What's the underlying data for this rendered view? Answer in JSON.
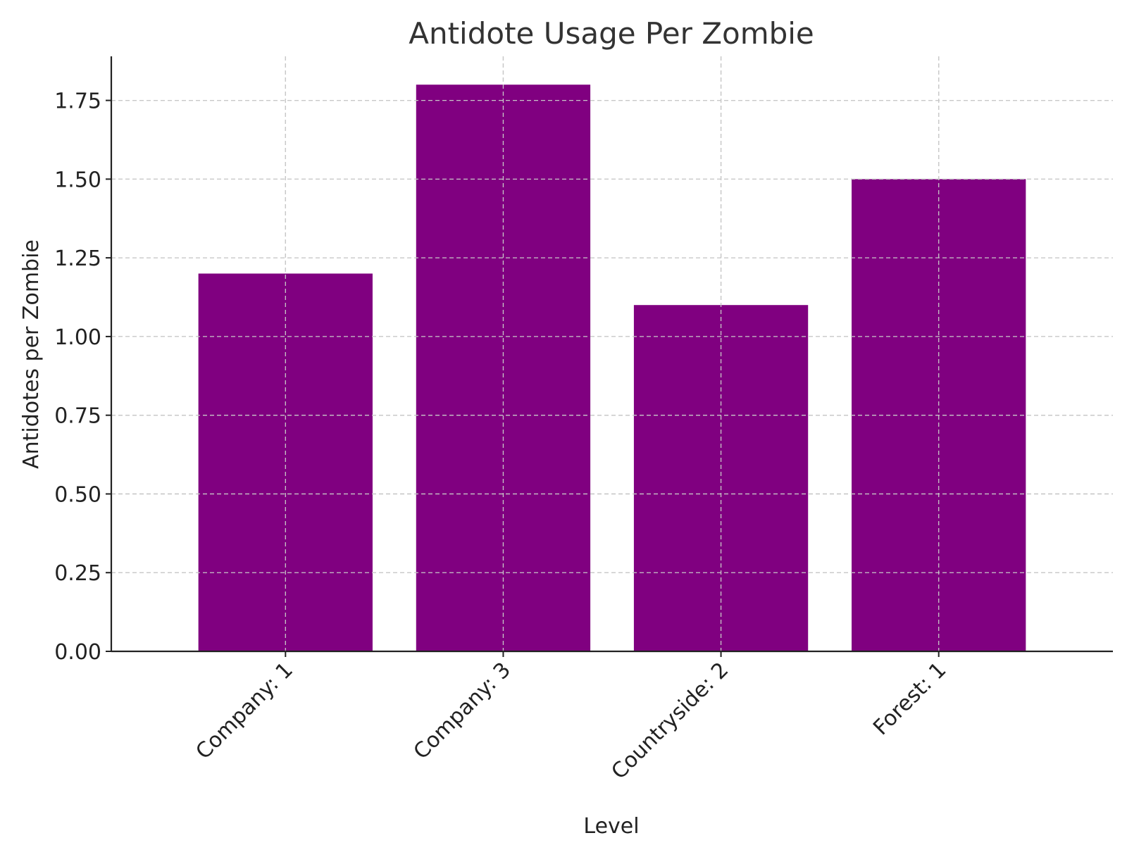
{
  "chart_data": {
    "type": "bar",
    "title": "Antidote Usage Per Zombie",
    "xlabel": "Level",
    "ylabel": "Antidotes per Zombie",
    "categories": [
      "Company: 1",
      "Company: 3",
      "Countryside: 2",
      "Forest: 1"
    ],
    "values": [
      1.2,
      1.8,
      1.1,
      1.5
    ],
    "ylim": [
      0,
      1.89
    ],
    "yticks": [
      0.0,
      0.25,
      0.5,
      0.75,
      1.0,
      1.25,
      1.5,
      1.75
    ],
    "ytick_labels": [
      "0.00",
      "0.25",
      "0.50",
      "0.75",
      "1.00",
      "1.25",
      "1.50",
      "1.75"
    ],
    "grid": true,
    "bar_color": "#800080"
  }
}
